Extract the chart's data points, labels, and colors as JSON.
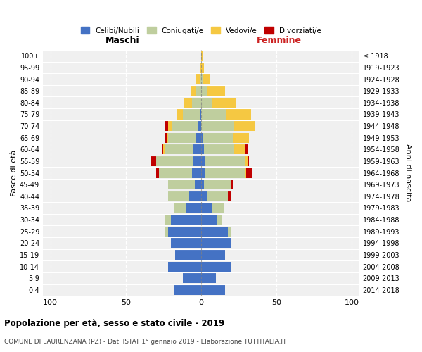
{
  "age_groups": [
    "0-4",
    "5-9",
    "10-14",
    "15-19",
    "20-24",
    "25-29",
    "30-34",
    "35-39",
    "40-44",
    "45-49",
    "50-54",
    "55-59",
    "60-64",
    "65-69",
    "70-74",
    "75-79",
    "80-84",
    "85-89",
    "90-94",
    "95-99",
    "100+"
  ],
  "birth_years": [
    "2014-2018",
    "2009-2013",
    "2004-2008",
    "1999-2003",
    "1994-1998",
    "1989-1993",
    "1984-1988",
    "1979-1983",
    "1974-1978",
    "1969-1973",
    "1964-1968",
    "1959-1963",
    "1954-1958",
    "1949-1953",
    "1944-1948",
    "1939-1943",
    "1934-1938",
    "1929-1933",
    "1924-1928",
    "1919-1923",
    "≤ 1918"
  ],
  "colors": {
    "celibe": "#4472C4",
    "coniugato": "#BFCE9E",
    "vedovo": "#F5C842",
    "divorziato": "#C00000"
  },
  "maschi": {
    "celibe": [
      18,
      12,
      22,
      17,
      20,
      22,
      20,
      10,
      8,
      4,
      6,
      5,
      5,
      3,
      2,
      1,
      0,
      0,
      0,
      0,
      0
    ],
    "coniugato": [
      0,
      0,
      0,
      0,
      0,
      2,
      4,
      8,
      14,
      18,
      22,
      25,
      19,
      19,
      17,
      11,
      6,
      3,
      1,
      0,
      0
    ],
    "vedovo": [
      0,
      0,
      0,
      0,
      0,
      0,
      0,
      0,
      0,
      0,
      0,
      0,
      1,
      1,
      3,
      4,
      5,
      4,
      2,
      1,
      0
    ],
    "divorziato": [
      0,
      0,
      0,
      0,
      0,
      0,
      0,
      0,
      0,
      0,
      2,
      3,
      1,
      1,
      2,
      0,
      0,
      0,
      0,
      0,
      0
    ]
  },
  "femmine": {
    "nubile": [
      16,
      10,
      20,
      16,
      20,
      18,
      11,
      7,
      4,
      2,
      3,
      3,
      2,
      1,
      0,
      0,
      0,
      0,
      0,
      0,
      0
    ],
    "coniugata": [
      0,
      0,
      0,
      0,
      0,
      2,
      3,
      8,
      14,
      18,
      26,
      26,
      20,
      20,
      22,
      17,
      7,
      4,
      1,
      0,
      0
    ],
    "vedova": [
      0,
      0,
      0,
      0,
      0,
      0,
      0,
      0,
      0,
      0,
      1,
      2,
      7,
      11,
      14,
      16,
      16,
      12,
      5,
      2,
      1
    ],
    "divorziata": [
      0,
      0,
      0,
      0,
      0,
      0,
      0,
      0,
      2,
      1,
      4,
      1,
      2,
      0,
      0,
      0,
      0,
      0,
      0,
      0,
      0
    ]
  },
  "xlim": [
    -105,
    105
  ],
  "xticks": [
    -100,
    -50,
    0,
    50,
    100
  ],
  "xticklabels": [
    "100",
    "50",
    "0",
    "50",
    "100"
  ],
  "title1": "Popolazione per età, sesso e stato civile - 2019",
  "title2": "COMUNE DI LAURENZANA (PZ) - Dati ISTAT 1° gennaio 2019 - Elaborazione TUTTITALIA.IT",
  "legend_labels": [
    "Celibi/Nubili",
    "Coniugati/e",
    "Vedovi/e",
    "Divorziati/e"
  ],
  "legend_colors": [
    "#4472C4",
    "#BFCE9E",
    "#F5C842",
    "#C00000"
  ],
  "ylabel_left": "Fasce di età",
  "ylabel_right": "Anni di nascita",
  "label_maschi": "Maschi",
  "label_femmine": "Femmine",
  "bg_color": "#F0F0F0"
}
